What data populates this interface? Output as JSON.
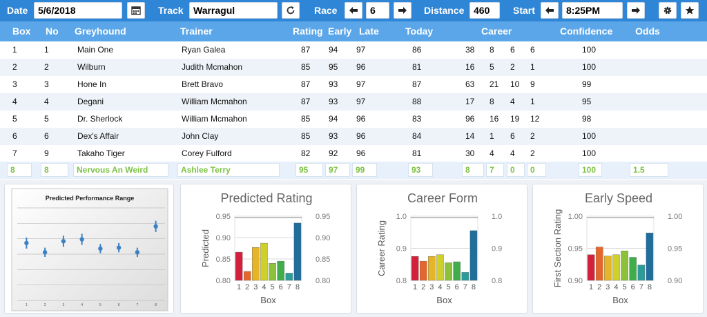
{
  "toolbar": {
    "date_label": "Date",
    "date_value": "5/6/2018",
    "track_label": "Track",
    "track_value": "Warragul",
    "race_label": "Race",
    "race_value": "6",
    "distance_label": "Distance",
    "distance_value": "460",
    "start_label": "Start",
    "start_value": "8:25PM"
  },
  "table": {
    "headers": [
      "Box",
      "No",
      "Greyhound",
      "Trainer",
      "Rating",
      "Early",
      "Late",
      "Today",
      "Career",
      "Confidence",
      "Odds"
    ],
    "rows": [
      [
        "1",
        "1",
        "Main One",
        "Ryan Galea",
        "87",
        "94",
        "97",
        "86",
        "38",
        "8",
        "6",
        "6",
        "100"
      ],
      [
        "2",
        "2",
        "Wilburn",
        "Judith Mcmahon",
        "85",
        "95",
        "96",
        "81",
        "16",
        "5",
        "2",
        "1",
        "100"
      ],
      [
        "3",
        "3",
        "Hone In",
        "Brett Bravo",
        "87",
        "93",
        "97",
        "87",
        "63",
        "21",
        "10",
        "9",
        "99"
      ],
      [
        "4",
        "4",
        "Degani",
        "William Mcmahon",
        "87",
        "93",
        "97",
        "88",
        "17",
        "8",
        "4",
        "1",
        "95"
      ],
      [
        "5",
        "5",
        "Dr. Sherlock",
        "William Mcmahon",
        "85",
        "94",
        "96",
        "83",
        "96",
        "16",
        "19",
        "12",
        "98"
      ],
      [
        "6",
        "6",
        "Dex's Affair",
        "John Clay",
        "85",
        "93",
        "96",
        "84",
        "14",
        "1",
        "6",
        "2",
        "100"
      ],
      [
        "7",
        "9",
        "Takaho Tiger",
        "Corey Fulford",
        "82",
        "92",
        "96",
        "81",
        "30",
        "4",
        "4",
        "2",
        "100"
      ]
    ],
    "selected": [
      "8",
      "8",
      "Nervous An Weird",
      "Ashlee Terry",
      "95",
      "97",
      "99",
      "93",
      "8",
      "7",
      "0",
      "0",
      "100",
      "1.5"
    ]
  },
  "colors": {
    "toolbar": "#2f86d6",
    "header": "#5ba6e8",
    "selected_text": "#7cc242",
    "row_alt": "#eef3f9"
  },
  "chart_data": [
    {
      "type": "scatter",
      "title": "Predicted Performance Range",
      "x": [
        1,
        2,
        3,
        4,
        5,
        6,
        7,
        8
      ],
      "categories": [
        "1",
        "2",
        "3",
        "4",
        "5",
        "6",
        "7",
        "8"
      ],
      "values": [
        0.62,
        0.52,
        0.64,
        0.66,
        0.56,
        0.57,
        0.52,
        0.8
      ],
      "low": [
        0.56,
        0.47,
        0.58,
        0.6,
        0.51,
        0.52,
        0.47,
        0.74
      ],
      "high": [
        0.68,
        0.57,
        0.7,
        0.72,
        0.61,
        0.62,
        0.57,
        0.86
      ],
      "ylim": [
        0,
        1
      ]
    },
    {
      "type": "bar",
      "title": "Predicted Rating",
      "xlabel": "Box",
      "ylabel": "Predicted",
      "categories": [
        "1",
        "2",
        "3",
        "4",
        "5",
        "6",
        "7",
        "8"
      ],
      "values": [
        0.866,
        0.821,
        0.877,
        0.887,
        0.84,
        0.845,
        0.817,
        0.934
      ],
      "yticks": [
        "0.95",
        "0.90",
        "0.85",
        "0.80"
      ],
      "ylim": [
        0.8,
        0.95
      ]
    },
    {
      "type": "bar",
      "title": "Career Form",
      "xlabel": "Box",
      "ylabel": "Career Rating",
      "categories": [
        "1",
        "2",
        "3",
        "4",
        "5",
        "6",
        "7",
        "8"
      ],
      "values": [
        0.875,
        0.86,
        0.875,
        0.88,
        0.855,
        0.858,
        0.825,
        0.955
      ],
      "yticks": [
        "1.0",
        "0.9",
        "0.8"
      ],
      "ylim": [
        0.8,
        1.0
      ]
    },
    {
      "type": "bar",
      "title": "Early Speed",
      "xlabel": "Box",
      "ylabel": "First Section Rating",
      "categories": [
        "1",
        "2",
        "3",
        "4",
        "5",
        "6",
        "7",
        "8"
      ],
      "values": [
        0.94,
        0.952,
        0.938,
        0.94,
        0.946,
        0.936,
        0.924,
        0.974
      ],
      "yticks": [
        "1.00",
        "0.95",
        "0.90"
      ],
      "ylim": [
        0.9,
        1.0
      ]
    }
  ]
}
